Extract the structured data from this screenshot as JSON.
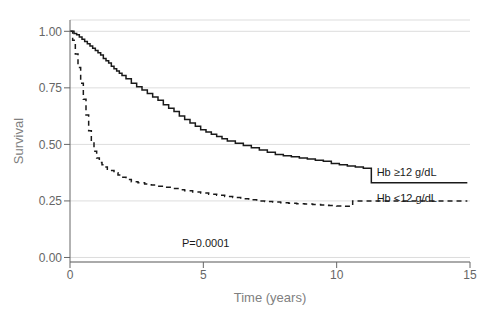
{
  "chart_data": {
    "type": "step",
    "xlabel": "Time (years)",
    "ylabel": "Survival",
    "xlim": [
      0,
      15
    ],
    "ylim": [
      -0.02,
      1.05
    ],
    "xticks": [
      0,
      5,
      10,
      15
    ],
    "yticks": [
      {
        "value": 0,
        "label": "0.00"
      },
      0.25,
      {
        "value": 0.5,
        "label": "0.50"
      },
      0.75,
      {
        "value": 1,
        "label": "1.00"
      }
    ],
    "grid": "y",
    "annotations": [
      {
        "text": "P=0.0001",
        "x": 4.2,
        "y": 0.06
      },
      {
        "text": "Hb ≥12 g/dL",
        "x": 11.5,
        "y": 0.375
      },
      {
        "text": "Hb <12 g/dL",
        "x": 11.5,
        "y": 0.26
      }
    ],
    "series": [
      {
        "color": "#1a1a1a",
        "line_style": "solid",
        "x": [
          0,
          0.15,
          0.25,
          0.35,
          0.45,
          0.55,
          0.65,
          0.75,
          0.85,
          0.95,
          1.05,
          1.15,
          1.25,
          1.35,
          1.45,
          1.55,
          1.65,
          1.75,
          1.85,
          1.95,
          2.1,
          2.3,
          2.5,
          2.7,
          2.9,
          3.1,
          3.3,
          3.5,
          3.7,
          3.9,
          4.1,
          4.3,
          4.5,
          4.7,
          4.9,
          5.1,
          5.3,
          5.5,
          5.7,
          5.9,
          6.2,
          6.5,
          6.8,
          7.1,
          7.4,
          7.7,
          8.0,
          8.3,
          8.6,
          8.9,
          9.2,
          9.5,
          9.8,
          10.1,
          10.4,
          10.7,
          11.0,
          11.3,
          14.9
        ],
        "values": [
          1.0,
          0.99,
          0.985,
          0.975,
          0.965,
          0.955,
          0.945,
          0.935,
          0.925,
          0.915,
          0.905,
          0.895,
          0.88,
          0.87,
          0.86,
          0.845,
          0.835,
          0.825,
          0.815,
          0.805,
          0.79,
          0.77,
          0.755,
          0.74,
          0.725,
          0.71,
          0.695,
          0.675,
          0.66,
          0.645,
          0.625,
          0.61,
          0.595,
          0.58,
          0.565,
          0.555,
          0.545,
          0.535,
          0.525,
          0.515,
          0.505,
          0.495,
          0.485,
          0.475,
          0.465,
          0.455,
          0.45,
          0.445,
          0.44,
          0.435,
          0.43,
          0.425,
          0.415,
          0.41,
          0.405,
          0.4,
          0.395,
          0.33,
          0.33
        ]
      },
      {
        "color": "#1a1a1a",
        "line_style": "dashed",
        "x": [
          0,
          0.1,
          0.2,
          0.3,
          0.4,
          0.5,
          0.6,
          0.7,
          0.8,
          0.9,
          1.0,
          1.1,
          1.2,
          1.3,
          1.4,
          1.5,
          1.65,
          1.8,
          1.95,
          2.1,
          2.3,
          2.55,
          2.8,
          3.05,
          3.3,
          3.55,
          3.8,
          4.05,
          4.3,
          4.6,
          4.9,
          5.2,
          5.5,
          5.8,
          6.1,
          6.4,
          6.7,
          7.0,
          7.3,
          7.6,
          7.9,
          8.2,
          8.5,
          8.8,
          9.1,
          9.4,
          9.7,
          10.0,
          10.3,
          10.6,
          14.9
        ],
        "values": [
          1.0,
          0.96,
          0.9,
          0.84,
          0.77,
          0.7,
          0.63,
          0.56,
          0.51,
          0.47,
          0.44,
          0.42,
          0.41,
          0.4,
          0.39,
          0.385,
          0.375,
          0.365,
          0.355,
          0.345,
          0.335,
          0.33,
          0.325,
          0.32,
          0.315,
          0.31,
          0.305,
          0.3,
          0.295,
          0.29,
          0.285,
          0.28,
          0.275,
          0.27,
          0.265,
          0.26,
          0.255,
          0.25,
          0.248,
          0.245,
          0.242,
          0.24,
          0.238,
          0.236,
          0.234,
          0.232,
          0.23,
          0.228,
          0.226,
          0.25,
          0.25
        ]
      }
    ]
  }
}
